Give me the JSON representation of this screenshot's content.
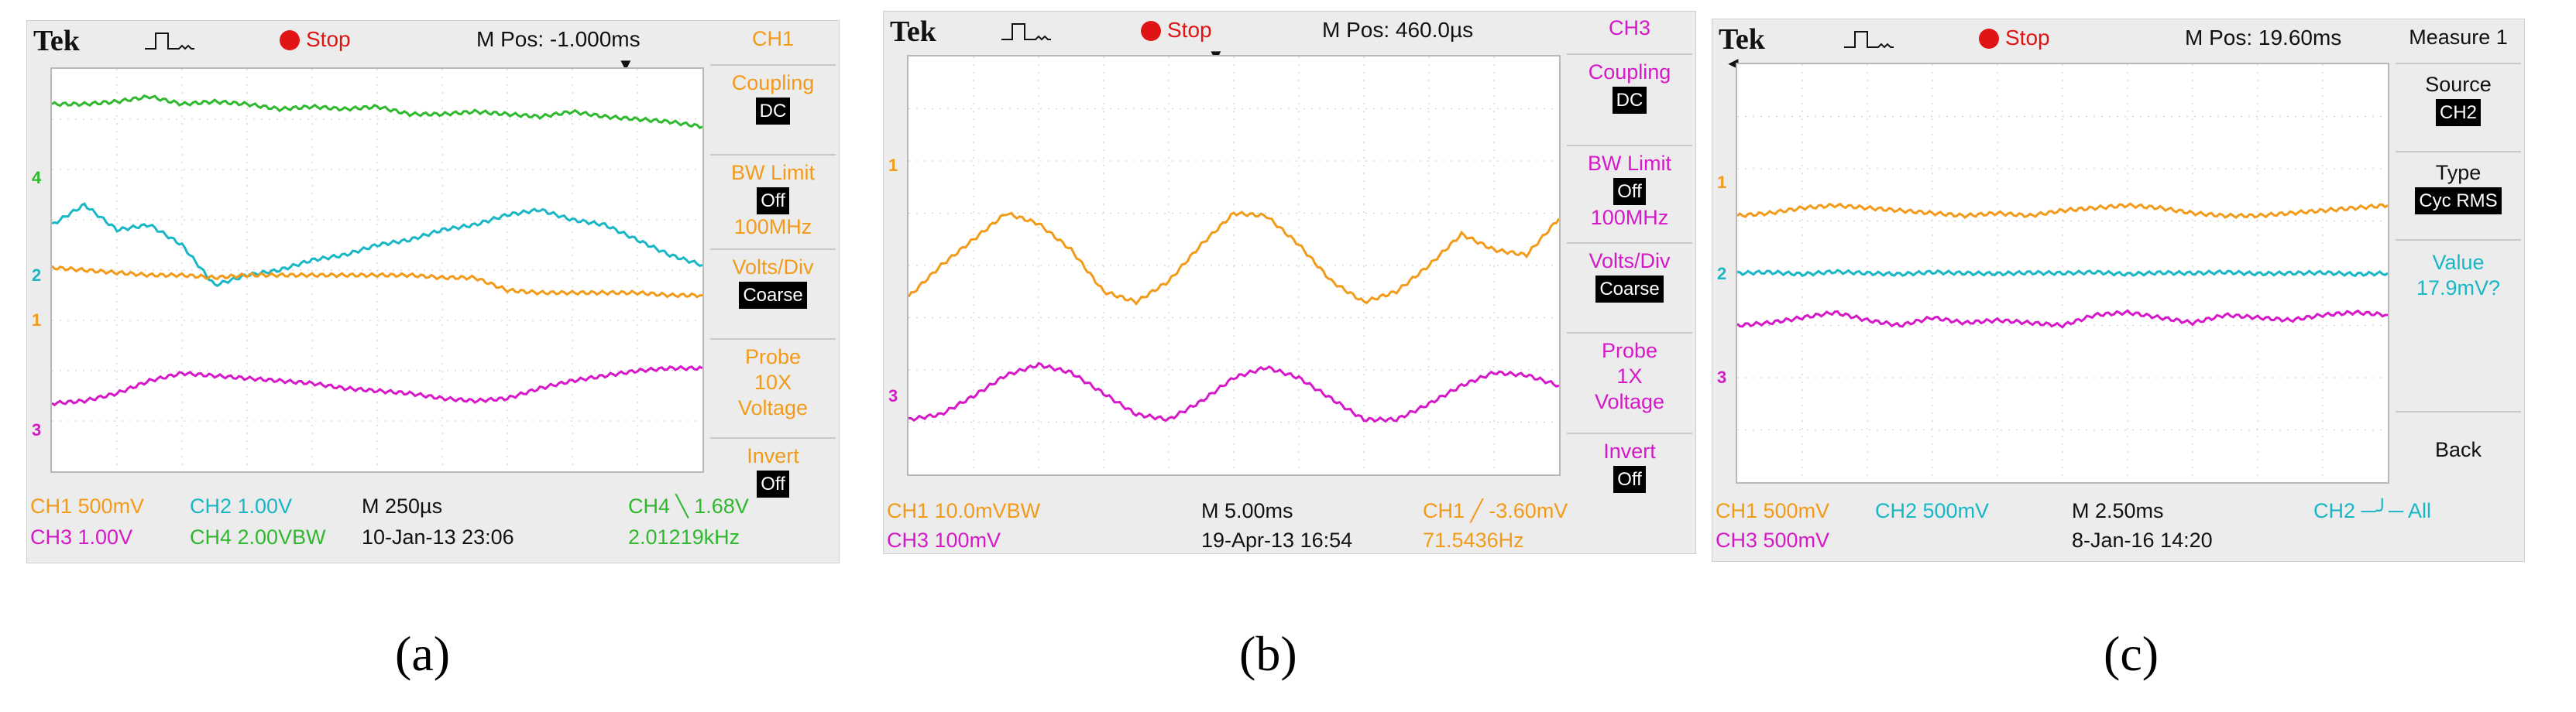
{
  "colors": {
    "orange": "#f29b1a",
    "cyan": "#19b7c6",
    "green": "#2fb92f",
    "magenta": "#d619c8",
    "stop": "#e01414"
  },
  "icons": [
    "trigger-pulse-icon",
    "stop-indicator-icon",
    "trigger-position-arrow-icon"
  ],
  "panels": [
    {
      "label": "(a)",
      "brand": "Tek",
      "status": "Stop",
      "mpos": "M Pos: -1.000ms",
      "menu_title": "CH1",
      "menu": [
        {
          "label": "Coupling",
          "value": "DC"
        },
        {
          "label": "BW Limit",
          "value": "Off",
          "extra": "100MHz"
        },
        {
          "label": "Volts/Div",
          "value": "Coarse"
        },
        {
          "label": "Probe",
          "text_lines": [
            "10X",
            "Voltage"
          ]
        },
        {
          "label": "Invert",
          "value": "Off"
        }
      ],
      "readouts": {
        "r1": "CH1  500mV",
        "r2": "CH2  1.00V",
        "r3": "CH3  1.00V",
        "r4": "CH4  2.00VBW",
        "timebase": "M 250µs",
        "date": "10-Jan-13 23:06",
        "trigger": "CH4 ╲ 1.68V",
        "freq": "2.01219kHz"
      },
      "markers": [
        "4",
        "2",
        "1",
        "3"
      ]
    },
    {
      "label": "(b)",
      "brand": "Tek",
      "status": "Stop",
      "mpos": "M Pos: 460.0µs",
      "menu_title": "CH3",
      "menu": [
        {
          "label": "Coupling",
          "value": "DC"
        },
        {
          "label": "BW Limit",
          "value": "Off",
          "extra": "100MHz"
        },
        {
          "label": "Volts/Div",
          "value": "Coarse"
        },
        {
          "label": "Probe",
          "text_lines": [
            "1X",
            "Voltage"
          ]
        },
        {
          "label": "Invert",
          "value": "Off"
        }
      ],
      "readouts": {
        "r1": "CH1  10.0mVBW",
        "r2": "CH3  100mV",
        "timebase": "M 5.00ms",
        "date": "19-Apr-13 16:54",
        "trigger": "CH1 ╱ -3.60mV",
        "freq": "71.5436Hz"
      },
      "markers": [
        "1",
        "3"
      ]
    },
    {
      "label": "(c)",
      "brand": "Tek",
      "status": "Stop",
      "mpos": "M Pos: 19.60ms",
      "menu_title": "Measure 1",
      "menu": [
        {
          "label": "Source",
          "value": "CH2"
        },
        {
          "label": "Type",
          "value": "Cyc RMS"
        },
        {
          "label": "Value",
          "text_lines": [
            "17.9mV?"
          ]
        },
        {
          "label": "Back"
        }
      ],
      "readouts": {
        "r1": "CH1  500mV",
        "r2": "CH2  500mV",
        "r3": "CH3  500mV",
        "timebase": "M 2.50ms",
        "date": "8-Jan-16 14:20",
        "trigger": "CH2 ─╯─ All"
      },
      "markers": [
        "1",
        "2",
        "3"
      ]
    }
  ],
  "chart_data": [
    {
      "type": "line",
      "title": "",
      "x": [
        0,
        0.5,
        1,
        1.5,
        2,
        2.5,
        3,
        3.5,
        4,
        4.5,
        5,
        5.5,
        6,
        6.5,
        7,
        7.5,
        8,
        8.5,
        9,
        9.5,
        10
      ],
      "xlabel": "",
      "ylabel": "",
      "xlim": [
        0,
        10
      ],
      "ylim": [
        -4,
        4
      ],
      "grid": true,
      "series": [
        {
          "name": "CH4",
          "color": "#2fb92f",
          "values": [
            3.3,
            3.3,
            3.35,
            3.45,
            3.3,
            3.35,
            3.3,
            3.2,
            3.25,
            3.2,
            3.25,
            3.1,
            3.1,
            3.15,
            3.1,
            3.05,
            3.15,
            3.05,
            3.0,
            2.95,
            2.85
          ]
        },
        {
          "name": "CH2",
          "color": "#19b7c6",
          "values": [
            0.9,
            1.3,
            0.8,
            0.9,
            0.5,
            -0.3,
            -0.1,
            0.0,
            0.2,
            0.3,
            0.5,
            0.6,
            0.8,
            0.9,
            1.1,
            1.2,
            1.0,
            0.9,
            0.6,
            0.3,
            0.1
          ]
        },
        {
          "name": "CH1",
          "color": "#f29b1a",
          "values": [
            0.05,
            0.0,
            -0.05,
            -0.1,
            -0.1,
            -0.15,
            -0.1,
            -0.1,
            -0.1,
            -0.1,
            -0.1,
            -0.1,
            -0.15,
            -0.15,
            -0.4,
            -0.45,
            -0.45,
            -0.45,
            -0.45,
            -0.5,
            -0.5
          ]
        },
        {
          "name": "CH3",
          "color": "#d619c8",
          "values": [
            -2.65,
            -2.6,
            -2.45,
            -2.2,
            -2.05,
            -2.1,
            -2.15,
            -2.2,
            -2.25,
            -2.35,
            -2.4,
            -2.45,
            -2.55,
            -2.6,
            -2.55,
            -2.35,
            -2.2,
            -2.1,
            -2.0,
            -1.95,
            -1.95
          ]
        }
      ]
    },
    {
      "type": "line",
      "title": "",
      "x": [
        0,
        0.5,
        1,
        1.5,
        2,
        2.5,
        3,
        3.5,
        4,
        4.5,
        5,
        5.5,
        6,
        6.5,
        7,
        7.5,
        8,
        8.5,
        9,
        9.5,
        10
      ],
      "xlabel": "",
      "ylabel": "",
      "xlim": [
        0,
        10
      ],
      "ylim": [
        -4,
        4
      ],
      "grid": true,
      "series": [
        {
          "name": "CH1",
          "color": "#f29b1a",
          "values": [
            -0.6,
            0.0,
            0.5,
            1.0,
            0.8,
            0.3,
            -0.5,
            -0.7,
            -0.3,
            0.4,
            1.0,
            0.95,
            0.4,
            -0.3,
            -0.7,
            -0.5,
            0.0,
            0.6,
            0.3,
            0.2,
            0.9
          ]
        },
        {
          "name": "CH3",
          "color": "#d619c8",
          "values": [
            -2.95,
            -2.85,
            -2.5,
            -2.1,
            -1.9,
            -2.05,
            -2.45,
            -2.85,
            -2.95,
            -2.6,
            -2.15,
            -1.95,
            -2.15,
            -2.55,
            -2.95,
            -2.95,
            -2.65,
            -2.3,
            -2.05,
            -2.1,
            -2.3
          ]
        }
      ]
    },
    {
      "type": "line",
      "title": "",
      "x": [
        0,
        0.5,
        1,
        1.5,
        2,
        2.5,
        3,
        3.5,
        4,
        4.5,
        5,
        5.5,
        6,
        6.5,
        7,
        7.5,
        8,
        8.5,
        9,
        9.5,
        10
      ],
      "xlabel": "",
      "ylabel": "",
      "xlim": [
        0,
        10
      ],
      "ylim": [
        -4,
        4
      ],
      "grid": true,
      "series": [
        {
          "name": "CH1",
          "color": "#f29b1a",
          "values": [
            1.1,
            1.15,
            1.25,
            1.3,
            1.25,
            1.2,
            1.15,
            1.1,
            1.15,
            1.1,
            1.2,
            1.25,
            1.3,
            1.25,
            1.15,
            1.1,
            1.1,
            1.15,
            1.2,
            1.25,
            1.3
          ]
        },
        {
          "name": "CH2",
          "color": "#19b7c6",
          "values": [
            0.0,
            0.02,
            -0.02,
            0.03,
            0.0,
            -0.02,
            0.02,
            0.0,
            -0.01,
            0.01,
            0.0,
            0.02,
            -0.02,
            0.01,
            0.0,
            0.02,
            -0.01,
            0.0,
            0.01,
            -0.02,
            0.0
          ]
        },
        {
          "name": "CH3",
          "color": "#d619c8",
          "values": [
            -1.0,
            -0.95,
            -0.85,
            -0.75,
            -0.9,
            -1.0,
            -0.85,
            -0.95,
            -0.9,
            -0.95,
            -1.0,
            -0.8,
            -0.75,
            -0.85,
            -0.95,
            -0.8,
            -0.85,
            -0.9,
            -0.8,
            -0.75,
            -0.8
          ]
        }
      ]
    }
  ]
}
